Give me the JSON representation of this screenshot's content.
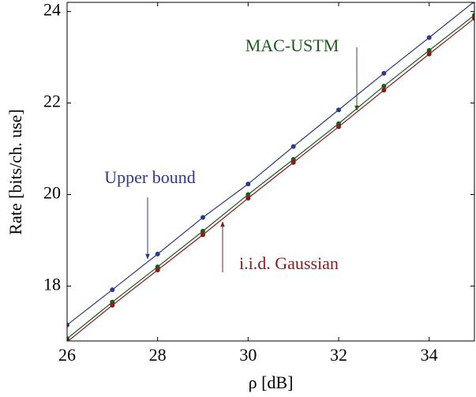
{
  "chart_data": {
    "type": "line",
    "xlabel": "ρ [dB]",
    "ylabel": "Rate [bits/ch. use]",
    "x": [
      26,
      27,
      28,
      29,
      30,
      31,
      32,
      33,
      34,
      35
    ],
    "series": [
      {
        "name": "Upper bound",
        "color": "#2b3a8c",
        "values": [
          17.15,
          17.92,
          18.7,
          19.5,
          20.23,
          21.05,
          21.85,
          22.65,
          23.43,
          24.22
        ]
      },
      {
        "name": "MAC-USTM",
        "color": "#1e5c1e",
        "values": [
          16.85,
          17.65,
          18.42,
          19.2,
          20.0,
          20.77,
          21.55,
          22.37,
          23.15,
          23.92
        ]
      },
      {
        "name": "i.i.d. Gaussian",
        "color": "#8b1a1a",
        "values": [
          16.78,
          17.58,
          18.35,
          19.12,
          19.92,
          20.7,
          21.48,
          22.28,
          23.07,
          23.85
        ]
      }
    ],
    "xlim": [
      26,
      35
    ],
    "ylim": [
      16.8,
      24.2
    ],
    "xticks": [
      26,
      28,
      30,
      32,
      34
    ],
    "yticks": [
      18,
      20,
      22,
      24
    ],
    "grid": false
  }
}
